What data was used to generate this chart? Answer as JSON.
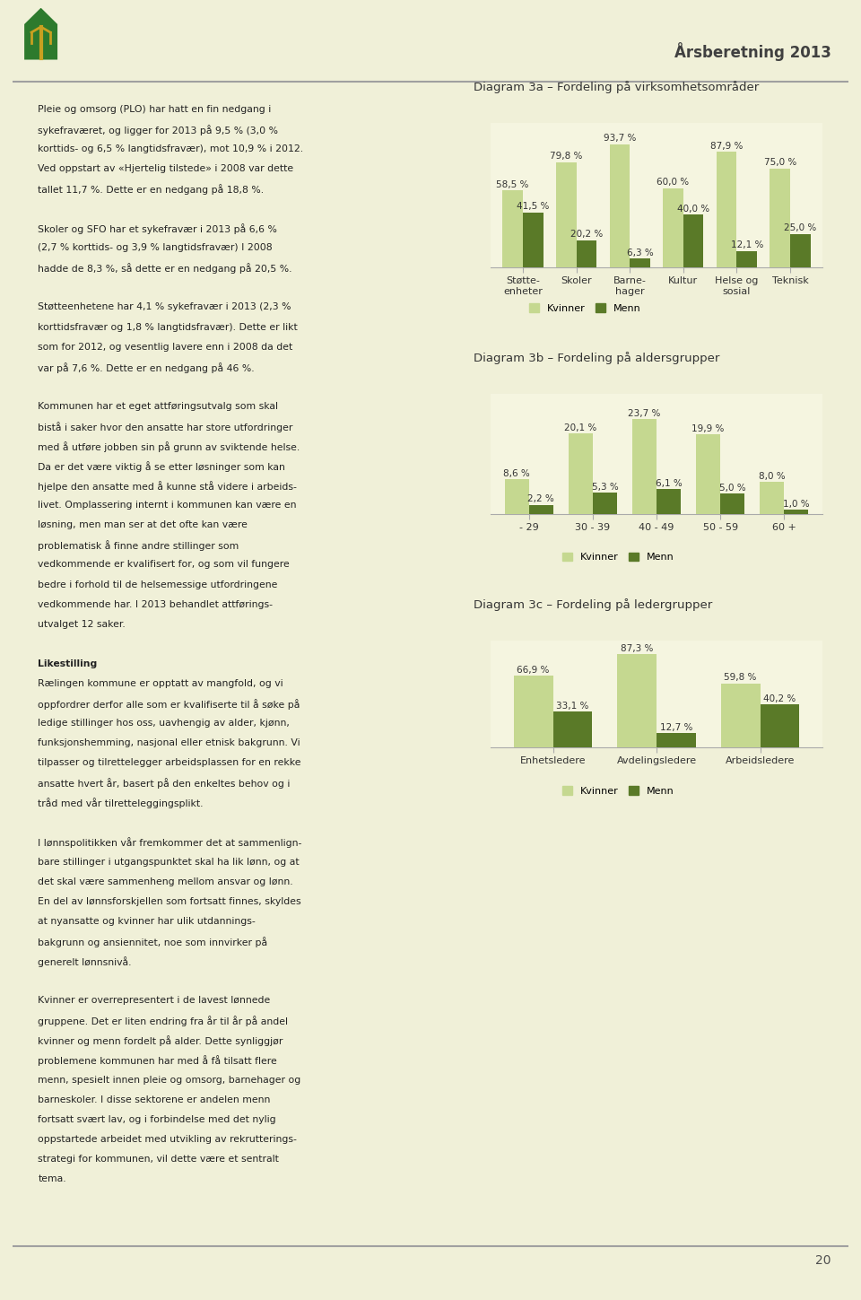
{
  "page_title": "Årsberetning 2013",
  "page_bg": "#f0f0d8",
  "content_bg": "#ffffff",
  "chart_bg": "#f5f5e0",
  "left_text": [
    "Pleie og omsorg (PLO) har hatt en fin nedgang i",
    "sykefraværet, og ligger for 2013 på 9,5 % (3,0 %",
    "korttids- og 6,5 % langtidsfravær), mot 10,9 % i 2012.",
    "Ved oppstart av «Hjertelig tilstede» i 2008 var dette",
    "tallet 11,7 %. Dette er en nedgang på 18,8 %.",
    "",
    "Skoler og SFO har et sykefravær i 2013 på 6,6 %",
    "(2,7 % korttids- og 3,9 % langtidsfravær) I 2008",
    "hadde de 8,3 %, så dette er en nedgang på 20,5 %.",
    "",
    "Støtteenhetene har 4,1 % sykefravær i 2013 (2,3 %",
    "korttidsfravær og 1,8 % langtidsfravær). Dette er likt",
    "som for 2012, og vesentlig lavere enn i 2008 da det",
    "var på 7,6 %. Dette er en nedgang på 46 %.",
    "",
    "Kommunen har et eget attføringsutvalg som skal",
    "bistå i saker hvor den ansatte har store utfordringer",
    "med å utføre jobben sin på grunn av sviktende helse.",
    "Da er det være viktig å se etter løsninger som kan",
    "hjelpe den ansatte med å kunne stå videre i arbeids-",
    "livet. Omplassering internt i kommunen kan være en",
    "løsning, men man ser at det ofte kan være",
    "problematisk å finne andre stillinger som",
    "vedkommende er kvalifisert for, og som vil fungere",
    "bedre i forhold til de helsemessige utfordringene",
    "vedkommende har. I 2013 behandlet attførings-",
    "utvalget 12 saker.",
    "",
    "Likestilling",
    "Rælingen kommune er opptatt av mangfold, og vi",
    "oppfordrer derfor alle som er kvalifiserte til å søke på",
    "ledige stillinger hos oss, uavhengig av alder, kjønn,",
    "funksjonshemming, nasjonal eller etnisk bakgrunn. Vi",
    "tilpasser og tilrettelegger arbeidsplassen for en rekke",
    "ansatte hvert år, basert på den enkeltes behov og i",
    "tråd med vår tilretteleggingsplikt.",
    "",
    "I lønnspolitikken vår fremkommer det at sammenlign-",
    "bare stillinger i utgangspunktet skal ha lik lønn, og at",
    "det skal være sammenheng mellom ansvar og lønn.",
    "En del av lønnsforskjellen som fortsatt finnes, skyldes",
    "at nyansatte og kvinner har ulik utdannings-",
    "bakgrunn og ansiennitet, noe som innvirker på",
    "generelt lønnsnivå.",
    "",
    "Kvinner er overrepresentert i de lavest lønnede",
    "gruppene. Det er liten endring fra år til år på andel",
    "kvinner og menn fordelt på alder. Dette synliggjør",
    "problemene kommunen har med å få tilsatt flere",
    "menn, spesielt innen pleie og omsorg, barnehager og",
    "barneskoler. I disse sektorene er andelen menn",
    "fortsatt svært lav, og i forbindelse med det nylig",
    "oppstartede arbeidet med utvikling av rekrutterings-",
    "strategi for kommunen, vil dette være et sentralt",
    "tema."
  ],
  "bold_lines": [
    "Likestilling"
  ],
  "diagram3a": {
    "title": "Diagram 3a – Fordeling på virksomhetsområder",
    "categories": [
      "Støtte-\nenheter",
      "Skoler",
      "Barne-\nhager",
      "Kultur",
      "Helse og\nsosial",
      "Teknisk"
    ],
    "kvinner": [
      58.5,
      79.8,
      93.7,
      60.0,
      87.9,
      75.0
    ],
    "menn": [
      41.5,
      20.2,
      6.3,
      40.0,
      12.1,
      25.0
    ],
    "color_kvinner": "#c5d890",
    "color_menn": "#5a7a28",
    "ymax": 110
  },
  "diagram3b": {
    "title": "Diagram 3b – Fordeling på aldersgrupper",
    "categories": [
      "- 29",
      "30 - 39",
      "40 - 49",
      "50 - 59",
      "60 +"
    ],
    "kvinner": [
      8.6,
      20.1,
      23.7,
      19.9,
      8.0
    ],
    "menn": [
      2.2,
      5.3,
      6.1,
      5.0,
      1.0
    ],
    "color_kvinner": "#c5d890",
    "color_menn": "#5a7a28",
    "ymax": 30
  },
  "diagram3c": {
    "title": "Diagram 3c – Fordeling på ledergrupper",
    "categories": [
      "Enhetsledere",
      "Avdelingsledere",
      "Arbeidsledere"
    ],
    "kvinner": [
      66.9,
      87.3,
      59.8
    ],
    "menn": [
      33.1,
      12.7,
      40.2
    ],
    "color_kvinner": "#c5d890",
    "color_menn": "#5a7a28",
    "ymax": 100
  },
  "legend_kvinner": "Kvinner",
  "legend_menn": "Menn",
  "footer_text": "20",
  "label_fontsize": 7.5,
  "tick_fontsize": 8.0,
  "title_fontsize": 9.5,
  "text_fontsize": 7.8
}
